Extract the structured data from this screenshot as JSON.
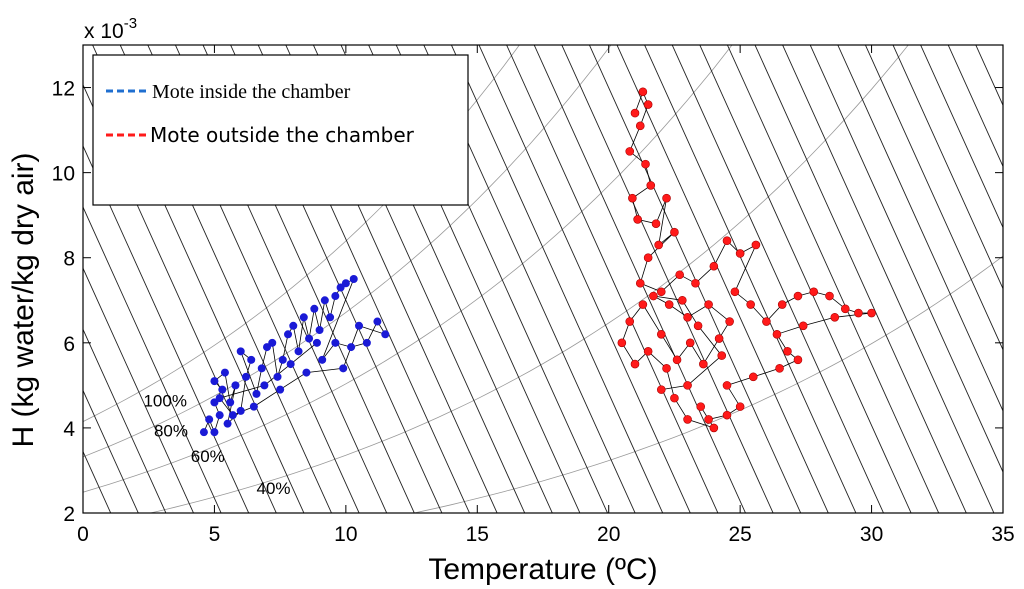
{
  "chart_data": {
    "type": "scatter",
    "title": "",
    "xlabel": "Temperature (ºC)",
    "ylabel": "H (kg water/kg dry air)",
    "y_multiplier": "x 10",
    "y_multiplier_exp": "-3",
    "xlim": [
      0,
      35
    ],
    "ylim": [
      2,
      13
    ],
    "x_ticks": [
      0,
      5,
      10,
      15,
      20,
      25,
      30,
      35
    ],
    "y_ticks": [
      2,
      4,
      6,
      8,
      10,
      12
    ],
    "legend_position": "top-left",
    "background": "psychrometric chart with relative-humidity curves and enthalpy lines",
    "rh_labels": [
      {
        "text": "100%",
        "x": 2.3,
        "y": 4.5
      },
      {
        "text": "80%",
        "x": 2.7,
        "y": 3.8
      },
      {
        "text": "60%",
        "x": 4.1,
        "y": 3.2
      },
      {
        "text": "40%",
        "x": 6.6,
        "y": 2.45
      }
    ],
    "series": [
      {
        "name": "Mote inside the chamber",
        "color": "#1a1ad6",
        "points": [
          [
            4.6,
            3.9
          ],
          [
            4.8,
            4.2
          ],
          [
            5.0,
            3.9
          ],
          [
            5.2,
            4.3
          ],
          [
            5.0,
            4.6
          ],
          [
            5.3,
            4.9
          ],
          [
            5.0,
            5.1
          ],
          [
            5.4,
            5.3
          ],
          [
            5.6,
            4.6
          ],
          [
            5.8,
            5.0
          ],
          [
            5.5,
            4.1
          ],
          [
            6.0,
            4.4
          ],
          [
            6.2,
            5.2
          ],
          [
            6.4,
            5.6
          ],
          [
            6.0,
            5.8
          ],
          [
            6.6,
            4.8
          ],
          [
            6.8,
            5.4
          ],
          [
            7.0,
            5.9
          ],
          [
            7.2,
            6.0
          ],
          [
            7.4,
            5.2
          ],
          [
            7.6,
            5.6
          ],
          [
            7.8,
            6.2
          ],
          [
            8.0,
            6.4
          ],
          [
            8.2,
            5.8
          ],
          [
            8.4,
            6.6
          ],
          [
            8.6,
            6.1
          ],
          [
            8.8,
            6.8
          ],
          [
            9.0,
            6.3
          ],
          [
            9.2,
            7.0
          ],
          [
            9.4,
            6.6
          ],
          [
            9.6,
            7.1
          ],
          [
            9.8,
            7.3
          ],
          [
            10.0,
            7.4
          ],
          [
            10.3,
            7.5
          ],
          [
            9.1,
            5.6
          ],
          [
            9.6,
            6.0
          ],
          [
            10.2,
            5.9
          ],
          [
            10.8,
            6.0
          ],
          [
            11.2,
            6.5
          ],
          [
            11.5,
            6.2
          ],
          [
            10.5,
            6.4
          ],
          [
            9.9,
            5.4
          ],
          [
            8.5,
            5.3
          ],
          [
            7.5,
            4.9
          ],
          [
            6.5,
            4.5
          ],
          [
            5.7,
            4.3
          ],
          [
            5.2,
            4.7
          ],
          [
            6.9,
            5.0
          ],
          [
            7.9,
            5.5
          ],
          [
            8.9,
            6.0
          ]
        ]
      },
      {
        "name": "Mote outside the chamber",
        "color": "#ff1a1a",
        "points": [
          [
            21.0,
            11.4
          ],
          [
            21.3,
            11.9
          ],
          [
            21.5,
            11.6
          ],
          [
            21.2,
            11.1
          ],
          [
            20.8,
            10.5
          ],
          [
            21.4,
            10.2
          ],
          [
            21.6,
            9.7
          ],
          [
            20.9,
            9.4
          ],
          [
            21.1,
            8.9
          ],
          [
            21.8,
            8.8
          ],
          [
            22.2,
            9.4
          ],
          [
            21.9,
            8.3
          ],
          [
            22.5,
            8.6
          ],
          [
            21.5,
            8.0
          ],
          [
            21.2,
            7.4
          ],
          [
            22.0,
            7.2
          ],
          [
            22.7,
            7.6
          ],
          [
            23.3,
            7.4
          ],
          [
            24.0,
            7.8
          ],
          [
            24.5,
            8.4
          ],
          [
            25.0,
            8.1
          ],
          [
            25.6,
            8.3
          ],
          [
            24.8,
            7.2
          ],
          [
            25.4,
            6.9
          ],
          [
            26.0,
            6.5
          ],
          [
            26.6,
            6.9
          ],
          [
            27.2,
            7.1
          ],
          [
            27.8,
            7.2
          ],
          [
            28.4,
            7.1
          ],
          [
            29.0,
            6.8
          ],
          [
            29.5,
            6.7
          ],
          [
            30.0,
            6.7
          ],
          [
            28.6,
            6.6
          ],
          [
            27.4,
            6.4
          ],
          [
            26.4,
            6.2
          ],
          [
            26.8,
            5.8
          ],
          [
            27.2,
            5.6
          ],
          [
            26.5,
            5.4
          ],
          [
            25.5,
            5.2
          ],
          [
            24.5,
            5.0
          ],
          [
            25.0,
            4.5
          ],
          [
            24.5,
            4.3
          ],
          [
            23.8,
            4.2
          ],
          [
            23.5,
            4.5
          ],
          [
            24.0,
            4.0
          ],
          [
            23.0,
            4.2
          ],
          [
            22.5,
            4.7
          ],
          [
            22.2,
            5.4
          ],
          [
            21.5,
            5.8
          ],
          [
            21.0,
            5.5
          ],
          [
            20.5,
            6.0
          ],
          [
            20.8,
            6.5
          ],
          [
            21.3,
            6.9
          ],
          [
            22.0,
            6.2
          ],
          [
            22.6,
            5.6
          ],
          [
            23.1,
            6.0
          ],
          [
            23.6,
            5.5
          ],
          [
            24.2,
            6.1
          ],
          [
            24.6,
            6.5
          ],
          [
            23.8,
            6.9
          ],
          [
            23.0,
            6.6
          ],
          [
            22.3,
            6.9
          ],
          [
            21.7,
            7.1
          ],
          [
            22.8,
            7.0
          ],
          [
            23.4,
            6.4
          ],
          [
            24.3,
            5.7
          ],
          [
            23.0,
            5.0
          ],
          [
            22.0,
            4.9
          ]
        ]
      }
    ]
  }
}
